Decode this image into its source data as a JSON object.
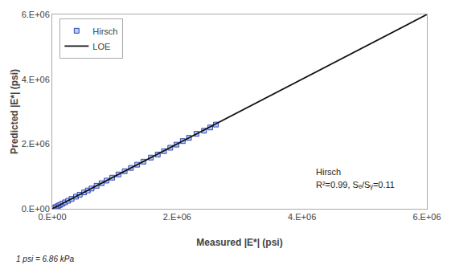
{
  "chart_data": {
    "type": "scatter",
    "xlabel": "Measured |E*| (psi)",
    "ylabel": "Predicted |E*| (psi)",
    "annotations": [
      "Hirsch",
      "R²=0.99, Sₑ/Sᵧ=0.11"
    ],
    "footnote": "1 psi = 6.86 kPa",
    "xlim": [
      0,
      6000000
    ],
    "ylim": [
      0,
      6000000
    ],
    "xticks": [
      {
        "value": 0,
        "label": "0.E+00"
      },
      {
        "value": 2000000,
        "label": "2.E+06"
      },
      {
        "value": 4000000,
        "label": "4.E+06"
      },
      {
        "value": 6000000,
        "label": "6.E+06"
      }
    ],
    "yticks": [
      {
        "value": 0,
        "label": "0.E+00"
      },
      {
        "value": 2000000,
        "label": "2.E+06"
      },
      {
        "value": 4000000,
        "label": "4.E+06"
      },
      {
        "value": 6000000,
        "label": "6.E+06"
      }
    ],
    "grid": false,
    "legend": "upper left",
    "series": [
      {
        "name": "Hirsch",
        "type": "scatter",
        "marker": "square",
        "color": "#aad4f0",
        "x": [
          30000,
          55000,
          80000,
          105000,
          130000,
          165000,
          205000,
          255000,
          310000,
          380000,
          440000,
          510000,
          570000,
          630000,
          710000,
          790000,
          870000,
          960000,
          1060000,
          1160000,
          1260000,
          1360000,
          1460000,
          1580000,
          1690000,
          1790000,
          1890000,
          1990000,
          2090000,
          2190000,
          2310000,
          2430000,
          2530000,
          2620000
        ],
        "values": [
          28000,
          50000,
          75000,
          100000,
          125000,
          160000,
          200000,
          248000,
          305000,
          375000,
          435000,
          505000,
          565000,
          625000,
          710000,
          790000,
          870000,
          960000,
          1060000,
          1160000,
          1260000,
          1360000,
          1455000,
          1580000,
          1675000,
          1780000,
          1885000,
          1980000,
          2090000,
          2190000,
          2315000,
          2410000,
          2510000,
          2600000
        ]
      },
      {
        "name": "LOE",
        "type": "line",
        "line_style": "solid",
        "color": "#111111",
        "x": [
          0,
          6000000
        ],
        "values": [
          0,
          6000000
        ]
      }
    ]
  }
}
